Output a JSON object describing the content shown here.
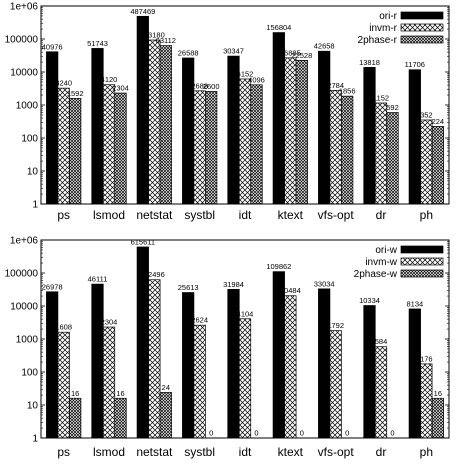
{
  "chart_data": [
    {
      "type": "bar",
      "log_scale": true,
      "ylim": [
        1,
        1000000
      ],
      "yticks": [
        "1",
        "10",
        "100",
        "1000",
        "10000",
        "100000",
        "1e+06"
      ],
      "yticks_values": [
        1,
        10,
        100,
        1000,
        10000,
        100000,
        1000000
      ],
      "categories": [
        "ps",
        "lsmod",
        "netstat",
        "systbl",
        "idt",
        "ktext",
        "vfs-opt",
        "dr",
        "ph"
      ],
      "legend_position": "top-right",
      "series": [
        {
          "name": "ori-r",
          "pattern": "solid",
          "values": [
            40976,
            51743,
            487469,
            26588,
            30347,
            156804,
            42658,
            13818,
            11706
          ],
          "labels": [
            "40976",
            "51743",
            "487469",
            "26588",
            "30347",
            "156804",
            "42658",
            "13818",
            "11706"
          ]
        },
        {
          "name": "invm-r",
          "pattern": "crosshatch",
          "values": [
            3240,
            4120,
            93180,
            2688,
            6152,
            26885,
            2784,
            1152,
            352
          ],
          "labels": [
            "3240",
            "4120",
            "93180",
            "2688",
            "6152",
            "26885",
            "2784",
            "1152",
            "352"
          ]
        },
        {
          "name": "2phase-r",
          "pattern": "dense-crosshatch",
          "values": [
            1592,
            2304,
            63112,
            2600,
            4096,
            22528,
            1856,
            592,
            224
          ],
          "labels": [
            "1592",
            "2304",
            "63112",
            "2600",
            "4096",
            "22528",
            "1856",
            "592",
            "224"
          ]
        }
      ]
    },
    {
      "type": "bar",
      "log_scale": true,
      "ylim": [
        1,
        1000000
      ],
      "yticks": [
        "1",
        "10",
        "100",
        "1000",
        "10000",
        "100000",
        "1e+06"
      ],
      "yticks_values": [
        1,
        10,
        100,
        1000,
        10000,
        100000,
        1000000
      ],
      "categories": [
        "ps",
        "lsmod",
        "netstat",
        "systbl",
        "idt",
        "ktext",
        "vfs-opt",
        "dr",
        "ph"
      ],
      "legend_position": "top-right",
      "series": [
        {
          "name": "ori-w",
          "pattern": "solid",
          "values": [
            26978,
            46111,
            615611,
            25613,
            31984,
            109862,
            33034,
            10334,
            8134
          ],
          "labels": [
            "26978",
            "46111",
            "615611",
            "25613",
            "31984",
            "109862",
            "33034",
            "10334",
            "8134"
          ]
        },
        {
          "name": "invm-w",
          "pattern": "crosshatch",
          "values": [
            1608,
            2304,
            62496,
            2624,
            4104,
            20484,
            1792,
            584,
            176
          ],
          "labels": [
            "1608",
            "2304",
            "62496",
            "2624",
            "4104",
            "20484",
            "1792",
            "584",
            "176"
          ]
        },
        {
          "name": "2phase-w",
          "pattern": "dense-crosshatch",
          "values": [
            16,
            16,
            24,
            0,
            0,
            0,
            0,
            0,
            16
          ],
          "labels": [
            "16",
            "16",
            "24",
            "0",
            "0",
            "0",
            "0",
            "0",
            "16"
          ]
        }
      ]
    }
  ]
}
